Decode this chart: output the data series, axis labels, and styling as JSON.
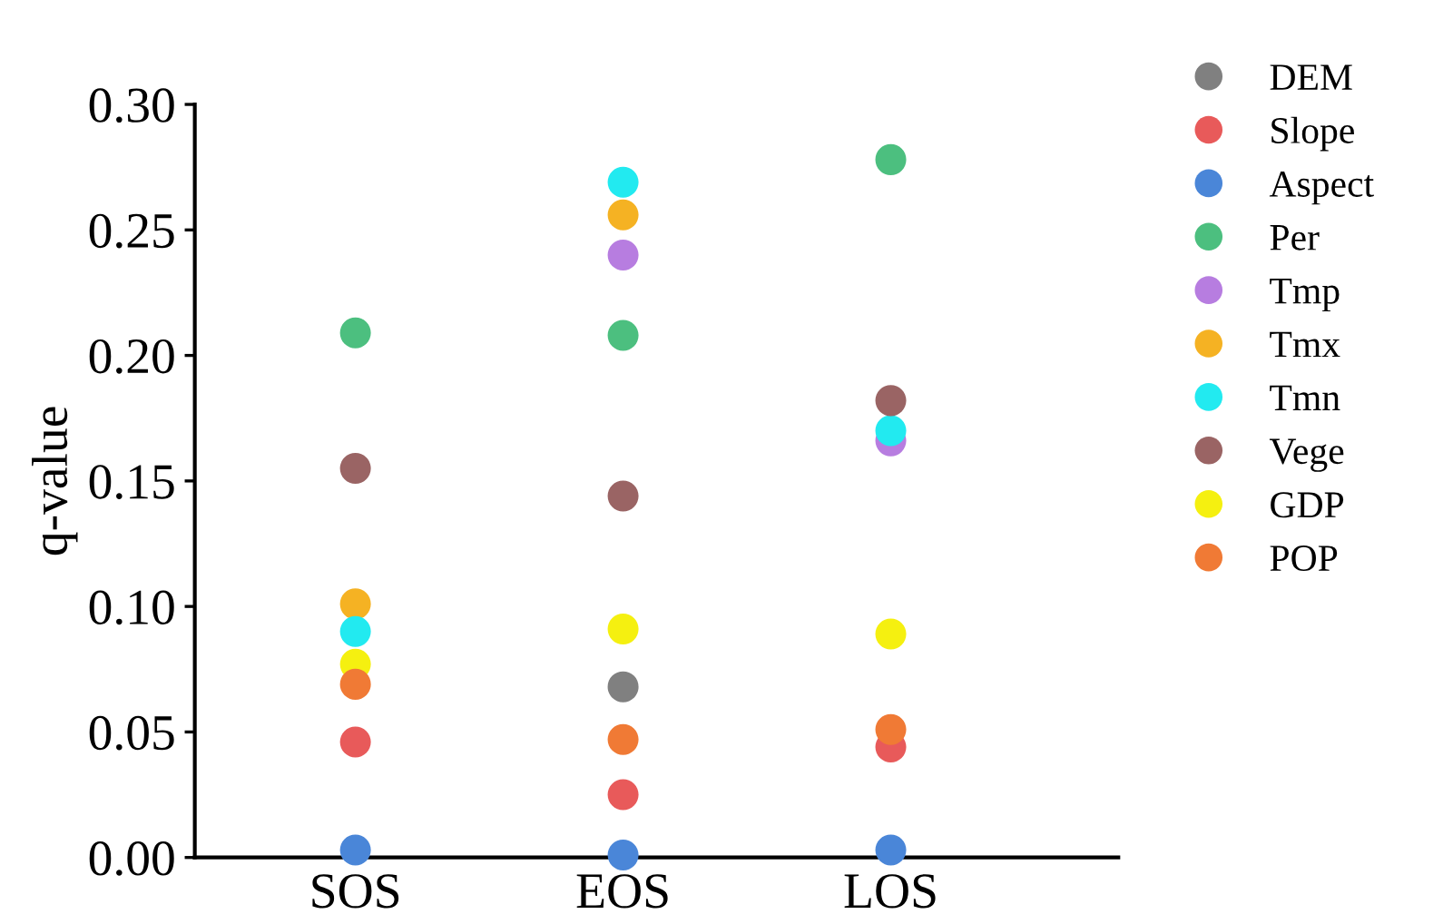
{
  "chart_data": {
    "type": "scatter",
    "ylabel": "q-value",
    "categories": [
      "SOS",
      "EOS",
      "LOS"
    ],
    "ylim": [
      0,
      0.3
    ],
    "yticks": [
      {
        "value": 0,
        "label": "0.00"
      },
      {
        "value": 0.05,
        "label": "0.05"
      },
      {
        "value": 0.1,
        "label": "0.10"
      },
      {
        "value": 0.15,
        "label": "0.15"
      },
      {
        "value": 0.2,
        "label": "0.20"
      },
      {
        "value": 0.25,
        "label": "0.25"
      },
      {
        "value": 0.3,
        "label": "0.30"
      }
    ],
    "grid": false,
    "legend": "right",
    "marker": "circle",
    "series": [
      {
        "name": "DEM",
        "color": "#808080",
        "values": [
          null,
          0.068,
          null
        ]
      },
      {
        "name": "Slope",
        "color": "#e85a5a",
        "values": [
          0.046,
          0.025,
          0.044
        ]
      },
      {
        "name": "Aspect",
        "color": "#4a86d8",
        "values": [
          0.003,
          0.001,
          0.003
        ]
      },
      {
        "name": "Per",
        "color": "#4cbf7f",
        "values": [
          0.209,
          0.208,
          0.278
        ]
      },
      {
        "name": "Tmp",
        "color": "#b77de0",
        "values": [
          null,
          0.24,
          0.166
        ]
      },
      {
        "name": "Tmx",
        "color": "#f5b223",
        "values": [
          0.101,
          0.256,
          null
        ]
      },
      {
        "name": "Tmn",
        "color": "#22eaf0",
        "values": [
          0.09,
          0.269,
          0.17
        ]
      },
      {
        "name": "Vege",
        "color": "#9a6464",
        "values": [
          0.155,
          0.144,
          0.182
        ]
      },
      {
        "name": "GDP",
        "color": "#f5f010",
        "values": [
          0.077,
          0.091,
          0.089
        ]
      },
      {
        "name": "POP",
        "color": "#f07a35",
        "values": [
          0.069,
          0.047,
          0.051
        ]
      }
    ]
  }
}
